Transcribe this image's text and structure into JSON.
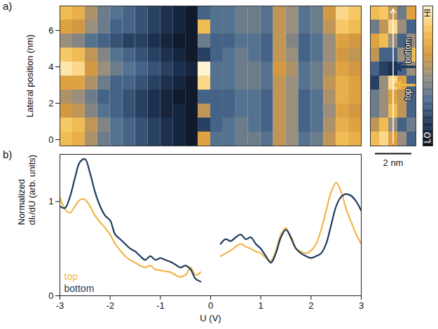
{
  "chart_data": [
    {
      "type": "heatmap",
      "panel": "a)",
      "ylabel": "Lateral position (nm)",
      "xlim": [
        -3,
        3
      ],
      "ylim": [
        -0.35,
        7.35
      ],
      "yticks": [
        0,
        2,
        4,
        6
      ],
      "tick_labels": "y",
      "x_edges": [
        -3,
        -2.75,
        -2.5,
        -2.25,
        -2,
        -1.75,
        -1.5,
        -1.25,
        -1,
        -0.75,
        -0.5,
        -0.25,
        0,
        0.25,
        0.5,
        0.75,
        1,
        1.25,
        1.5,
        1.75,
        2,
        2.25,
        2.5,
        2.75,
        3
      ],
      "y_edges": [
        -0.35,
        0.42,
        1.19,
        1.96,
        2.73,
        3.5,
        4.27,
        5.04,
        5.81,
        6.58,
        7.35
      ],
      "z": [
        [
          0.8,
          0.75,
          0.55,
          0.4,
          0.35,
          0.3,
          0.25,
          0.2,
          0.15,
          0.1,
          0.05,
          0.7,
          0.35,
          0.35,
          0.4,
          0.4,
          0.35,
          0.6,
          0.5,
          0.35,
          0.4,
          0.6,
          0.8,
          0.75
        ],
        [
          0.85,
          0.8,
          0.6,
          0.45,
          0.35,
          0.3,
          0.25,
          0.2,
          0.15,
          0.1,
          0.05,
          0.2,
          0.3,
          0.35,
          0.4,
          0.35,
          0.3,
          0.6,
          0.5,
          0.3,
          0.35,
          0.55,
          0.75,
          0.7
        ],
        [
          0.65,
          0.6,
          0.45,
          0.35,
          0.3,
          0.25,
          0.2,
          0.15,
          0.1,
          0.1,
          0.05,
          0.6,
          0.3,
          0.3,
          0.35,
          0.35,
          0.3,
          0.6,
          0.5,
          0.3,
          0.35,
          0.5,
          0.7,
          0.65
        ],
        [
          0.55,
          0.5,
          0.4,
          0.3,
          0.3,
          0.25,
          0.2,
          0.15,
          0.1,
          0.05,
          0.05,
          0.3,
          0.3,
          0.3,
          0.35,
          0.35,
          0.3,
          0.6,
          0.5,
          0.3,
          0.35,
          0.55,
          0.75,
          0.7
        ],
        [
          0.7,
          0.7,
          0.55,
          0.4,
          0.3,
          0.3,
          0.25,
          0.2,
          0.15,
          0.1,
          0.05,
          0.9,
          0.35,
          0.35,
          0.4,
          0.4,
          0.35,
          0.6,
          0.5,
          0.35,
          0.4,
          0.6,
          0.75,
          0.7
        ],
        [
          0.95,
          0.9,
          0.65,
          0.5,
          0.4,
          0.35,
          0.3,
          0.25,
          0.2,
          0.15,
          0.1,
          1.0,
          0.35,
          0.35,
          0.4,
          0.4,
          0.35,
          0.65,
          0.55,
          0.35,
          0.4,
          0.55,
          0.7,
          0.65
        ],
        [
          0.85,
          0.8,
          0.6,
          0.45,
          0.35,
          0.3,
          0.25,
          0.2,
          0.15,
          0.1,
          0.05,
          0.2,
          0.3,
          0.35,
          0.4,
          0.35,
          0.3,
          0.6,
          0.5,
          0.3,
          0.35,
          0.5,
          0.65,
          0.6
        ],
        [
          0.5,
          0.45,
          0.35,
          0.3,
          0.25,
          0.2,
          0.2,
          0.15,
          0.1,
          0.05,
          0.05,
          0.4,
          0.3,
          0.3,
          0.35,
          0.35,
          0.3,
          0.6,
          0.45,
          0.3,
          0.35,
          0.5,
          0.7,
          0.65
        ],
        [
          0.7,
          0.65,
          0.5,
          0.4,
          0.3,
          0.3,
          0.25,
          0.2,
          0.15,
          0.1,
          0.05,
          0.8,
          0.35,
          0.35,
          0.4,
          0.4,
          0.35,
          0.6,
          0.5,
          0.35,
          0.4,
          0.6,
          0.85,
          0.8
        ],
        [
          0.8,
          0.75,
          0.55,
          0.4,
          0.35,
          0.3,
          0.25,
          0.2,
          0.15,
          0.1,
          0.05,
          0.3,
          0.35,
          0.35,
          0.4,
          0.4,
          0.35,
          0.6,
          0.5,
          0.35,
          0.4,
          0.65,
          0.9,
          0.85
        ]
      ],
      "colors": [
        "#0a0e18",
        "#1e3556",
        "#4f6f93",
        "#9a8f7c",
        "#d99a3c",
        "#f6c45a",
        "#fff4d2"
      ],
      "colorbar": {
        "range": [
          0,
          1
        ],
        "ticks": [
          {
            "value": 1,
            "label": "HI"
          },
          {
            "value": 0,
            "label": "LO"
          }
        ]
      }
    },
    {
      "type": "heatmap",
      "tick_labels": false,
      "xlim": [
        0,
        2.5
      ],
      "ylim": [
        -0.35,
        7.35
      ],
      "x_edges": [
        0,
        0.5,
        1,
        1.5,
        2,
        2.5
      ],
      "y_edges": [
        -0.35,
        0.42,
        1.19,
        1.96,
        2.73,
        3.5,
        4.27,
        5.04,
        5.81,
        6.58,
        7.35
      ],
      "z": [
        [
          0.8,
          0.9,
          0.7,
          0.5,
          0.3
        ],
        [
          0.6,
          0.8,
          0.5,
          0.3,
          0.4
        ],
        [
          0.4,
          0.5,
          0.8,
          0.6,
          0.3
        ],
        [
          0.4,
          0.5,
          0.7,
          0.6,
          0.3
        ],
        [
          0.2,
          0.5,
          0.9,
          0.7,
          0.3
        ],
        [
          0.3,
          0.2,
          0.15,
          0.3,
          0.5
        ],
        [
          0.6,
          0.3,
          0.3,
          0.5,
          0.8
        ],
        [
          0.7,
          0.8,
          0.5,
          0.3,
          0.5
        ],
        [
          0.4,
          0.6,
          0.9,
          0.5,
          0.3
        ],
        [
          0.8,
          0.85,
          0.6,
          0.4,
          0.7
        ]
      ],
      "colors": [
        "#0a0e18",
        "#1e3556",
        "#4f6f93",
        "#9a8f7c",
        "#d99a3c",
        "#f6c45a",
        "#fff4d2"
      ],
      "markers": [
        {
          "label": "top",
          "y": 3.0,
          "color": "#f0b64a"
        },
        {
          "label": "bottom",
          "y": 4.0,
          "color": "#1d3a5c"
        }
      ],
      "scale_bar": {
        "length": 2,
        "label": "2 nm"
      }
    },
    {
      "type": "line",
      "panel": "b)",
      "xlabel": "U (V)",
      "ylabel": "Normalized\ndIₜ/dU (arb. units)",
      "xlim": [
        -3,
        3
      ],
      "xticks": [
        -3,
        -2,
        -1,
        0,
        1,
        2,
        3
      ],
      "ylim": [
        0,
        1.5
      ],
      "yticks": [
        0,
        1
      ],
      "legend": "lower left",
      "x": [
        -3,
        -2.9,
        -2.8,
        -2.7,
        -2.6,
        -2.5,
        -2.4,
        -2.3,
        -2.2,
        -2.1,
        -2,
        -1.9,
        -1.8,
        -1.7,
        -1.6,
        -1.5,
        -1.4,
        -1.3,
        -1.2,
        -1.1,
        -1,
        -0.9,
        -0.8,
        -0.7,
        -0.6,
        -0.5,
        -0.4,
        -0.3,
        -0.2,
        -0.1,
        0,
        0.1,
        0.2,
        0.3,
        0.4,
        0.5,
        0.6,
        0.7,
        0.8,
        0.9,
        1,
        1.1,
        1.2,
        1.3,
        1.4,
        1.5,
        1.6,
        1.7,
        1.8,
        1.9,
        2,
        2.1,
        2.2,
        2.3,
        2.4,
        2.5,
        2.6,
        2.7,
        2.8,
        2.9,
        3
      ],
      "series": [
        {
          "name": "top",
          "color": "#f0b64a",
          "values": [
            1.05,
            0.92,
            0.88,
            0.95,
            1.02,
            1.02,
            0.95,
            0.85,
            0.78,
            0.72,
            0.65,
            0.55,
            0.48,
            0.42,
            0.38,
            0.35,
            0.32,
            0.3,
            0.32,
            0.28,
            0.27,
            0.26,
            0.25,
            0.22,
            0.2,
            0.22,
            0.3,
            0.22,
            0.25,
            null,
            null,
            null,
            0.42,
            0.45,
            0.48,
            0.52,
            0.55,
            0.52,
            0.5,
            0.47,
            0.45,
            0.4,
            0.37,
            0.48,
            0.65,
            0.72,
            0.6,
            0.5,
            0.47,
            0.45,
            0.48,
            0.55,
            0.7,
            0.9,
            1.1,
            1.2,
            1.1,
            0.92,
            0.78,
            0.65,
            0.55
          ]
        },
        {
          "name": "bottom",
          "color": "#1d3a5c",
          "values": [
            0.95,
            0.93,
            1.05,
            1.25,
            1.42,
            1.45,
            1.3,
            1.1,
            0.95,
            0.85,
            0.8,
            0.65,
            0.6,
            0.55,
            0.5,
            0.47,
            0.42,
            0.38,
            0.42,
            0.38,
            0.4,
            0.38,
            0.36,
            0.33,
            0.3,
            0.32,
            0.28,
            0.18,
            0.15,
            null,
            null,
            null,
            0.55,
            0.6,
            0.58,
            0.62,
            0.65,
            0.6,
            0.62,
            0.55,
            0.5,
            0.42,
            0.35,
            0.45,
            0.62,
            0.7,
            0.62,
            0.5,
            0.45,
            0.42,
            0.4,
            0.42,
            0.45,
            0.55,
            0.75,
            0.95,
            1.05,
            1.08,
            1.06,
            1.0,
            0.9
          ]
        }
      ]
    }
  ]
}
